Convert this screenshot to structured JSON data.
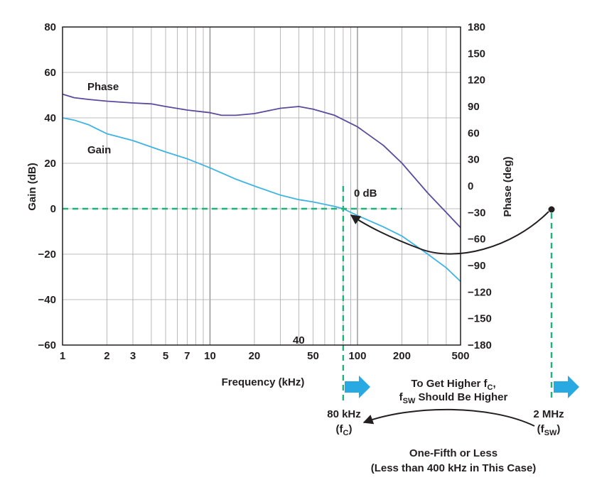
{
  "colors": {
    "phase": "#5b4a9e",
    "gain": "#3fb3e3",
    "guide": "#1db37a",
    "arrow_fill": "#29a9e1",
    "grid": "#a7a9ac",
    "text": "#231f20"
  },
  "chart_data": {
    "type": "line",
    "x_scale": "log",
    "xlim": [
      1,
      500
    ],
    "ylim": [
      -60,
      80
    ],
    "y2lim": [
      -180,
      180
    ],
    "xlabel": "Frequency (kHz)",
    "ylabel": "Gain (dB)",
    "y2label": "Phase (deg)",
    "x_ticks": [
      1,
      2,
      3,
      5,
      7,
      10,
      20,
      50,
      100,
      200,
      500
    ],
    "x_tick_labels": [
      "1",
      "2",
      "3",
      "5",
      "7",
      "10",
      "20",
      "50",
      "100",
      "200",
      "500"
    ],
    "x_extra_ticks": [
      40
    ],
    "x_extra_tick_labels": [
      "40"
    ],
    "y_ticks": [
      80,
      60,
      40,
      20,
      0,
      -20,
      -40,
      -60
    ],
    "y_tick_labels": [
      "80",
      "60",
      "40",
      "20",
      "0",
      "−20",
      "−40",
      "−60"
    ],
    "y2_ticks": [
      180,
      150,
      120,
      90,
      60,
      30,
      0,
      -30,
      -60,
      -90,
      -120,
      -150,
      -180
    ],
    "y2_tick_labels": [
      "180",
      "150",
      "120",
      "90",
      "60",
      "30",
      "0",
      "−30",
      "−60",
      "−90",
      "−120",
      "−150",
      "−180"
    ],
    "grid": true,
    "series": [
      {
        "name": "Phase",
        "axis": "right",
        "x": [
          1,
          1.2,
          1.5,
          2,
          3,
          4,
          5,
          7,
          10,
          12,
          15,
          20,
          30,
          40,
          50,
          70,
          100,
          150,
          200,
          300,
          400,
          500
        ],
        "y": [
          104,
          100,
          98,
          96,
          94,
          93,
          90,
          86,
          83,
          80,
          80,
          82,
          88,
          90,
          87,
          80,
          67,
          46,
          26,
          -8,
          -30,
          -47
        ]
      },
      {
        "name": "Gain",
        "axis": "left",
        "x": [
          1,
          1.2,
          1.5,
          2,
          3,
          5,
          7,
          10,
          15,
          20,
          30,
          40,
          50,
          70,
          80,
          100,
          150,
          200,
          300,
          400,
          500
        ],
        "y": [
          40,
          39,
          37,
          33,
          30,
          25,
          22,
          18,
          13,
          10,
          6,
          4,
          3,
          1,
          0,
          -3,
          -8,
          -12,
          -20,
          -26,
          -32
        ]
      }
    ],
    "annotations": {
      "zero_db": "0 dB",
      "fc_value": "80 kHz",
      "fc_label": "(f",
      "fc_sub": "C",
      "fc_close": ")",
      "fsw_value": "2 MHz",
      "fsw_label": "(f",
      "fsw_sub": "SW",
      "fsw_close": ")",
      "note1_a": "To Get Higher f",
      "note1_sub": "C",
      "note1_b": ",",
      "note2_a": "f",
      "note2_sub": "SW",
      "note2_b": " Should Be Higher",
      "bottom1": "One-Fifth or Less",
      "bottom2": "(Less than 400 kHz in This Case)"
    }
  }
}
